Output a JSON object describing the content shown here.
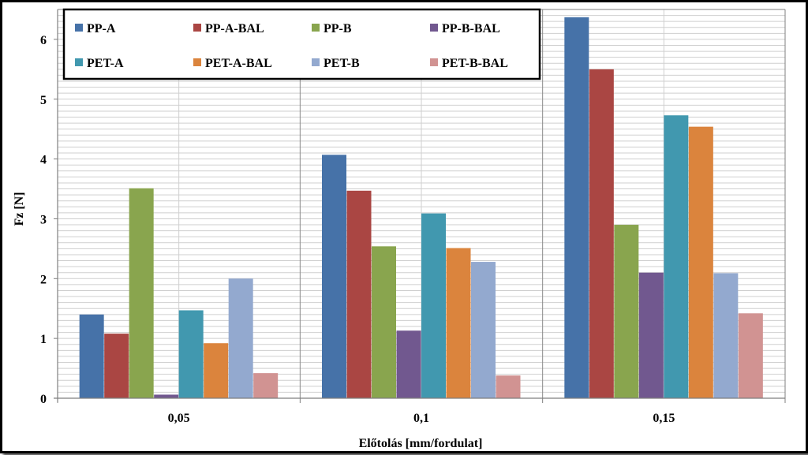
{
  "chart_data": {
    "type": "bar",
    "xlabel": "Előtolás [mm/fordulat]",
    "ylabel": "Fz [N]",
    "categories": [
      "0,05",
      "0,1",
      "0,15"
    ],
    "ylim": [
      0,
      6.5
    ],
    "yticks": [
      0,
      1,
      2,
      3,
      4,
      5,
      6
    ],
    "grid": true,
    "legend_position": "top-left",
    "series": [
      {
        "name": "PP-A",
        "color": "#4672A8",
        "values": [
          1.4,
          4.07,
          6.37
        ]
      },
      {
        "name": "PP-A-BAL",
        "color": "#AA4643",
        "values": [
          1.08,
          3.47,
          5.5
        ]
      },
      {
        "name": "PP-B",
        "color": "#89A54E",
        "values": [
          3.51,
          2.54,
          2.9
        ]
      },
      {
        "name": "PP-B-BAL",
        "color": "#71588F",
        "values": [
          0.06,
          1.13,
          2.1
        ]
      },
      {
        "name": "PET-A",
        "color": "#4198AF",
        "values": [
          1.47,
          3.09,
          4.73
        ]
      },
      {
        "name": "PET-A-BAL",
        "color": "#DB843D",
        "values": [
          0.92,
          2.51,
          4.54
        ]
      },
      {
        "name": "PET-B",
        "color": "#93A9CF",
        "values": [
          2.0,
          2.28,
          2.09
        ]
      },
      {
        "name": "PET-B-BAL",
        "color": "#D19392",
        "values": [
          0.42,
          0.38,
          1.42
        ]
      }
    ]
  }
}
